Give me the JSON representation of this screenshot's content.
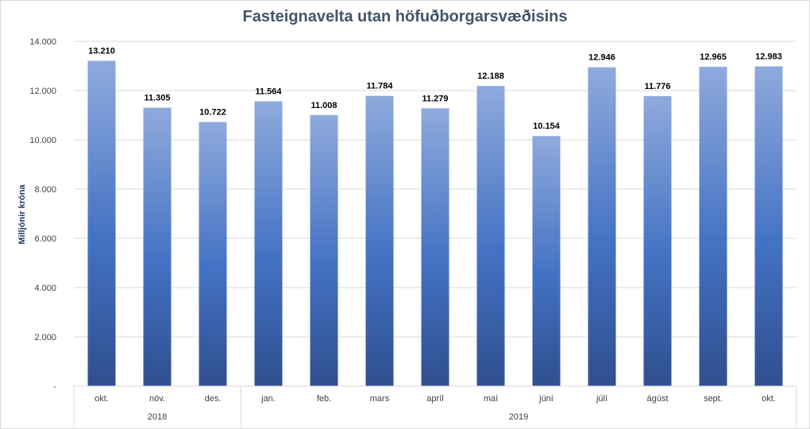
{
  "chart_data": {
    "type": "bar",
    "title": "Fasteignavelta utan höfuðborgarsvæðisins",
    "ylabel": "Milljónir króna",
    "categories": [
      "okt.",
      "nóv.",
      "des.",
      "jan.",
      "feb.",
      "mars",
      "apríl",
      "maí",
      "júní",
      "júlí",
      "ágúst",
      "sept.",
      "okt."
    ],
    "groups": [
      {
        "label": "2018",
        "count": 3
      },
      {
        "label": "2019",
        "count": 10
      }
    ],
    "values": [
      13210,
      11305,
      10722,
      11564,
      11008,
      11784,
      11279,
      12188,
      10154,
      12946,
      11776,
      12965,
      12983
    ],
    "data_labels": [
      "13.210",
      "11.305",
      "10.722",
      "11.564",
      "11.008",
      "11.784",
      "11.279",
      "12.188",
      "10.154",
      "12.946",
      "11.776",
      "12.965",
      "12.983"
    ],
    "ylim": [
      0,
      14000
    ],
    "yticks": [
      0,
      2000,
      4000,
      6000,
      8000,
      10000,
      12000,
      14000
    ],
    "ytick_labels": [
      "-",
      "2.000",
      "4.000",
      "6.000",
      "8.000",
      "10.000",
      "12.000",
      "14.000"
    ],
    "grid": true,
    "legend": "none",
    "colors": {
      "bar_top": "#8faadc",
      "bar_mid": "#4472c4",
      "bar_bottom": "#2f4f8f",
      "grid": "#d9d9d9",
      "title": "#44546a"
    }
  }
}
